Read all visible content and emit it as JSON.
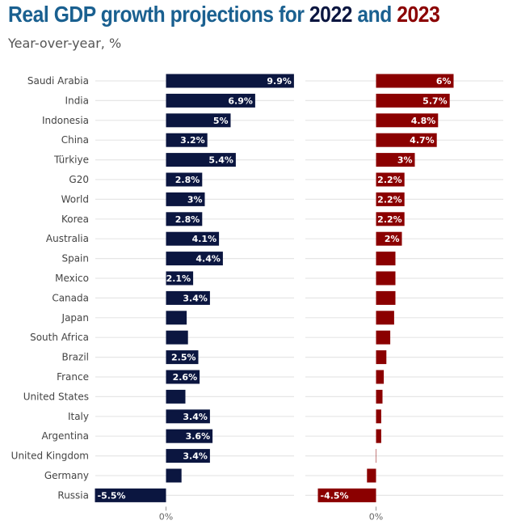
{
  "title": {
    "prefix": "Real GDP growth projections for ",
    "year1": "2022",
    "middle": " and ",
    "year2": "2023"
  },
  "subtitle": "Year-over-year, %",
  "colors": {
    "title": "#1a6090",
    "series_2022": "#0b1640",
    "series_2023": "#8b0000",
    "gridline": "#e6e6e6"
  },
  "chart_data": {
    "type": "bar",
    "orientation": "horizontal",
    "title": "Real GDP growth projections for 2022 and 2023",
    "subtitle": "Year-over-year, %",
    "xlabel": "",
    "ylabel": "",
    "grid": true,
    "categories": [
      "Saudi Arabia",
      "India",
      "Indonesia",
      "China",
      "Türkiye",
      "G20",
      "World",
      "Korea",
      "Australia",
      "Spain",
      "Mexico",
      "Canada",
      "Japan",
      "South Africa",
      "Brazil",
      "France",
      "United States",
      "Italy",
      "Argentina",
      "United Kingdom",
      "Germany",
      "Russia"
    ],
    "series": [
      {
        "name": "2022",
        "values": [
          9.9,
          6.9,
          5.0,
          3.2,
          5.4,
          2.8,
          3.0,
          2.8,
          4.1,
          4.4,
          2.1,
          3.4,
          1.6,
          1.7,
          2.5,
          2.6,
          1.5,
          3.4,
          3.6,
          3.4,
          1.2,
          -5.5
        ],
        "labels": [
          "9.9%",
          "6.9%",
          "5%",
          "3.2%",
          "5.4%",
          "2.8%",
          "3%",
          "2.8%",
          "4.1%",
          "4.4%",
          "2.1%",
          "3.4%",
          "",
          "",
          "2.5%",
          "2.6%",
          "",
          "3.4%",
          "3.6%",
          "3.4%",
          "",
          "-5.5%"
        ],
        "xlim": [
          -5.5,
          9.9
        ],
        "zero_tick": "0%"
      },
      {
        "name": "2023",
        "values": [
          6.0,
          5.7,
          4.8,
          4.7,
          3.0,
          2.2,
          2.2,
          2.2,
          2.0,
          1.5,
          1.5,
          1.5,
          1.4,
          1.1,
          0.8,
          0.6,
          0.5,
          0.4,
          0.4,
          0.0,
          -0.7,
          -4.5
        ],
        "labels": [
          "6%",
          "5.7%",
          "4.8%",
          "4.7%",
          "3%",
          "2.2%",
          "2.2%",
          "2.2%",
          "2%",
          "",
          "",
          "",
          "",
          "",
          "",
          "",
          "",
          "",
          "",
          "",
          "",
          "-4.5%"
        ],
        "xlim": [
          -5.5,
          9.9
        ],
        "zero_tick": "0%"
      }
    ]
  }
}
